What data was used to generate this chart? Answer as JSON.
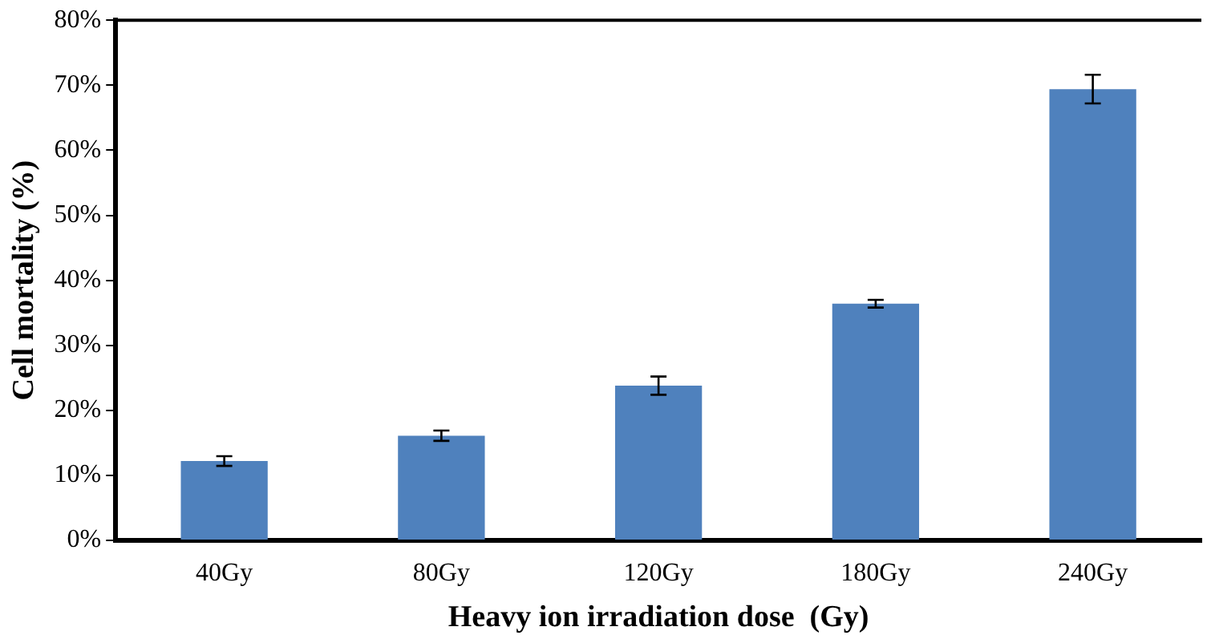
{
  "chart_data": {
    "type": "bar",
    "xlabel": "Heavy ion irradiation dose  (Gy)",
    "ylabel": "Cell mortality (%)",
    "categories": [
      "40Gy",
      "80Gy",
      "120Gy",
      "180Gy",
      "240Gy"
    ],
    "values": [
      12.2,
      16.1,
      23.8,
      36.4,
      69.4
    ],
    "errors": [
      0.75,
      0.8,
      1.4,
      0.6,
      2.2
    ],
    "color": "#4f81bd",
    "ylim": [
      0,
      80
    ],
    "yticks": [
      {
        "value": 0,
        "label": "0%"
      },
      {
        "value": 10,
        "label": "10%"
      },
      {
        "value": 20,
        "label": "20%"
      },
      {
        "value": 30,
        "label": "30%"
      },
      {
        "value": 40,
        "label": "40%"
      },
      {
        "value": 50,
        "label": "50%"
      },
      {
        "value": 60,
        "label": "60%"
      },
      {
        "value": 70,
        "label": "70%"
      },
      {
        "value": 80,
        "label": "80%"
      }
    ],
    "grid": false,
    "legend": false
  }
}
